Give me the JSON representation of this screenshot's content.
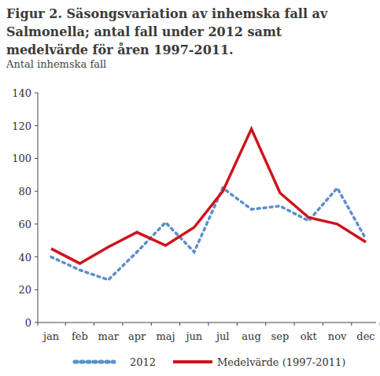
{
  "chart_data": {
    "type": "line",
    "title": "Figur 2. Säsongsvariation av inhemska fall av Salmonella; antal fall under 2012 samt medelvärde för åren 1997-2011.",
    "ylabel": "Antal inhemska fall",
    "categories": [
      "jan",
      "feb",
      "mar",
      "apr",
      "maj",
      "jun",
      "jul",
      "aug",
      "sep",
      "okt",
      "nov",
      "dec"
    ],
    "series": [
      {
        "name": "2012",
        "color": "#5b8fc9",
        "line_style": "dashed",
        "values": [
          40,
          32,
          26,
          43,
          61,
          43,
          82,
          69,
          71,
          62,
          82,
          51
        ]
      },
      {
        "name": "Medelvärde (1997-2011)",
        "color": "#d0121b",
        "line_style": "solid",
        "values": [
          45,
          36,
          46,
          55,
          47,
          58,
          80,
          118,
          79,
          64,
          60,
          49
        ]
      }
    ],
    "ylim": [
      0,
      140
    ],
    "yticks": [
      0,
      20,
      40,
      60,
      80,
      100,
      120,
      140
    ],
    "grid": false,
    "legend": "bottom"
  }
}
